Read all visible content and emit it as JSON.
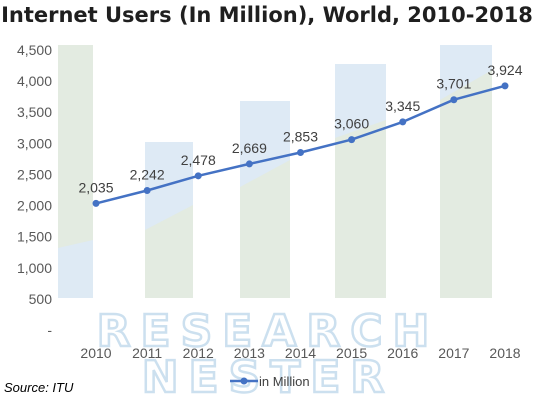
{
  "chart_data": {
    "type": "line",
    "title": "Internet Users (In Million), World, 2010-2018",
    "xlabel": "",
    "ylabel": "",
    "categories": [
      "2010",
      "2011",
      "2012",
      "2013",
      "2014",
      "2015",
      "2016",
      "2017",
      "2018"
    ],
    "series": [
      {
        "name": "in Million",
        "values": [
          2035,
          2242,
          2478,
          2669,
          2853,
          3060,
          3345,
          3701,
          3924
        ],
        "labels": [
          "2,035",
          "2,242",
          "2,478",
          "2,669",
          "2,853",
          "3,060",
          "3,345",
          "3,701",
          "3,924"
        ],
        "color": "#4472c4"
      }
    ],
    "ylim": [
      0,
      4500
    ],
    "y_ticks": [
      0,
      500,
      1000,
      1500,
      2000,
      2500,
      3000,
      3500,
      4000,
      4500
    ],
    "y_tick_labels": [
      "-",
      "500",
      "1,000",
      "1,500",
      "2,000",
      "2,500",
      "3,000",
      "3,500",
      "4,000",
      "4,500"
    ],
    "grid": false,
    "legend": "bottom",
    "markers": true
  },
  "source": "Source: ITU",
  "watermark": {
    "line1": "RESEARCH",
    "line2": "NESTER"
  },
  "colors": {
    "line": "#4472c4",
    "text": "#595959",
    "watermark_green": "#d9e4d7",
    "watermark_blue": "#ddeaf6"
  }
}
